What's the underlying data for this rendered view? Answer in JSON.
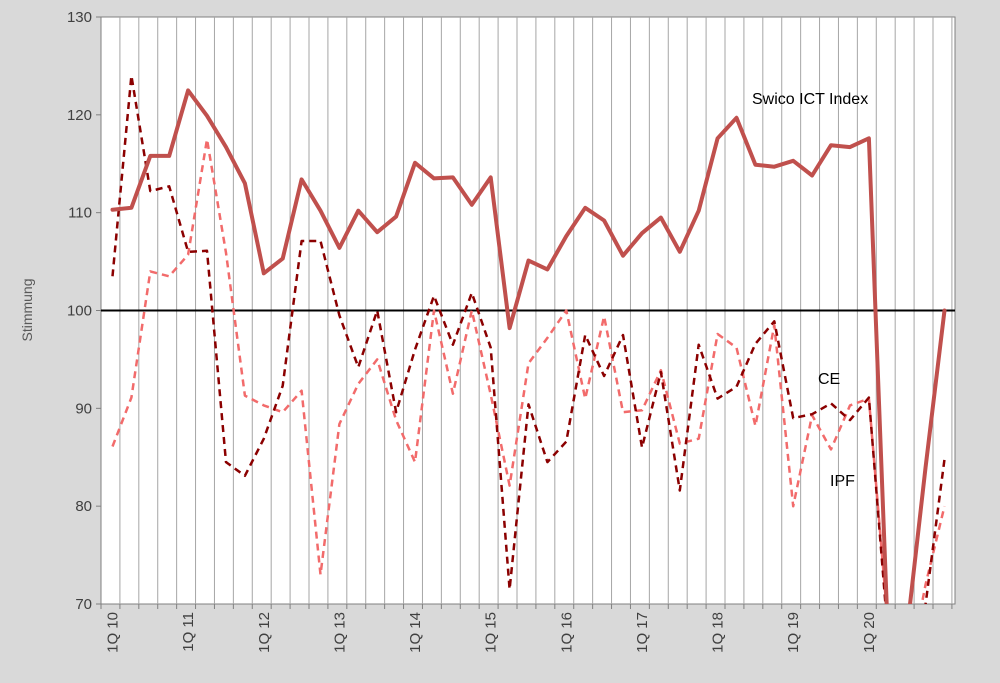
{
  "chart_data": {
    "type": "line",
    "ylabel": "Stimmung",
    "ylim": [
      70,
      130
    ],
    "yticks": [
      70,
      80,
      90,
      100,
      110,
      120,
      130
    ],
    "reference_line": 100,
    "x_start_label": "1Q 10",
    "year_labels": [
      "1Q 10",
      "1Q 11",
      "1Q 12",
      "1Q 13",
      "1Q 14",
      "1Q 15",
      "1Q 16",
      "1Q 17",
      "1Q 18",
      "1Q 19",
      "1Q 20"
    ],
    "grid": "vertical",
    "series": [
      {
        "name": "Swico ICT Index",
        "color": "#c0504d",
        "style": "solid",
        "values": [
          110.3,
          110.5,
          115.8,
          115.8,
          122.5,
          119.9,
          116.7,
          113.0,
          103.8,
          105.3,
          113.4,
          110.2,
          106.4,
          110.2,
          108.0,
          109.6,
          115.1,
          113.5,
          113.6,
          110.8,
          113.6,
          98.2,
          105.1,
          104.2,
          107.6,
          110.5,
          109.2,
          105.6,
          107.9,
          109.5,
          106.0,
          110.2,
          117.6,
          119.7,
          114.9,
          114.7,
          115.3,
          113.8,
          116.9,
          116.7,
          117.6,
          67.0,
          67.0,
          84.0,
          100.0
        ]
      },
      {
        "name": "CE",
        "color": "#8b0000",
        "style": "dashed",
        "values": [
          103.5,
          124.0,
          112.2,
          112.7,
          106.0,
          106.1,
          84.5,
          83.1,
          86.9,
          92.3,
          107.1,
          107.1,
          99.5,
          94.2,
          100.0,
          89.6,
          96.0,
          101.5,
          96.5,
          101.8,
          96.2,
          71.5,
          90.4,
          84.5,
          86.6,
          97.5,
          93.3,
          97.5,
          86.0,
          93.7,
          81.6,
          96.5,
          91.0,
          92.2,
          96.6,
          98.9,
          89.0,
          89.4,
          90.5,
          88.8,
          91.1,
          67.0,
          60.0,
          70.0,
          84.8
        ]
      },
      {
        "name": "IPF",
        "color": "#f26b6b",
        "style": "dashed",
        "values": [
          86.1,
          91.1,
          104.0,
          103.5,
          105.7,
          117.5,
          105.9,
          91.3,
          90.3,
          89.6,
          91.8,
          73.0,
          88.4,
          92.5,
          95.0,
          88.8,
          84.5,
          100.0,
          91.5,
          100.0,
          91.4,
          82.1,
          94.6,
          97.2,
          100.0,
          91.0,
          99.4,
          89.6,
          89.8,
          93.9,
          86.4,
          86.9,
          97.6,
          96.2,
          88.2,
          98.5,
          80.0,
          89.3,
          85.8,
          90.3,
          91.0,
          68.0,
          62.0,
          72.0,
          80.0
        ]
      }
    ],
    "annotations": [
      "Swico ICT Index",
      "CE",
      "IPF"
    ]
  }
}
